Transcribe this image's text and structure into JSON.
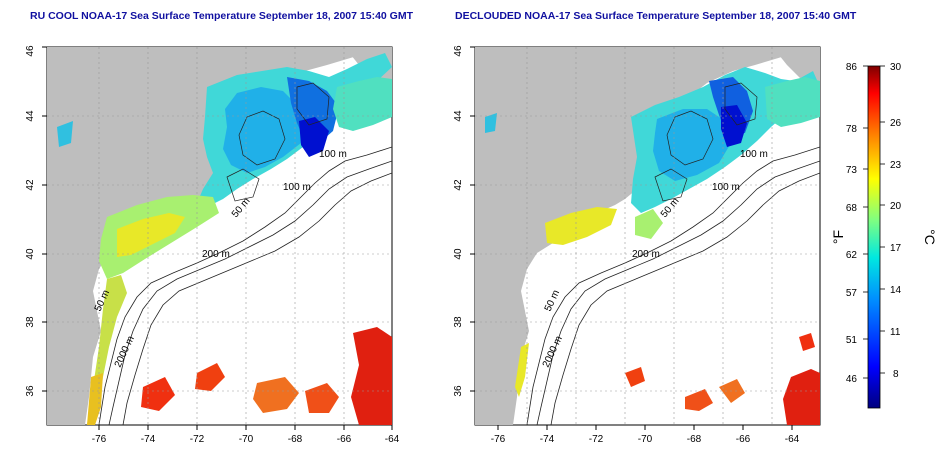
{
  "titles": {
    "left": "RU COOL NOAA-17 Sea Surface Temperature September 18, 2007 15:40 GMT",
    "right": "DECLOUDED NOAA-17 Sea Surface Temperature September 18, 2007 15:40 GMT"
  },
  "map_axes": {
    "x_ticks": [
      "-76",
      "-74",
      "-72",
      "-70",
      "-68",
      "-66",
      "-64"
    ],
    "y_ticks": [
      "36",
      "38",
      "40",
      "42",
      "44",
      "46"
    ]
  },
  "contour_labels": {
    "left": [
      "100 m",
      "100 m",
      "50 m",
      "200 m",
      "50 m",
      "2000 m"
    ],
    "right": [
      "100 m",
      "100 m",
      "50 m",
      "200 m",
      "50 m",
      "2000 m"
    ]
  },
  "colorbar": {
    "fahrenheit_label": "°F",
    "celsius_label": "°C",
    "fahrenheit_ticks": [
      "86",
      "78",
      "73",
      "68",
      "62",
      "57",
      "51",
      "46"
    ],
    "celsius_ticks": [
      "30",
      "26",
      "23",
      "20",
      "17",
      "14",
      "11",
      "8"
    ],
    "colors": [
      "#00007f",
      "#0000ff",
      "#0080ff",
      "#00ffff",
      "#80ff80",
      "#ffff00",
      "#ff8000",
      "#ff0000",
      "#7f0000"
    ]
  },
  "colors": {
    "land": "#bebebe",
    "ocean": "#ffffff",
    "title": "#1010a0"
  }
}
